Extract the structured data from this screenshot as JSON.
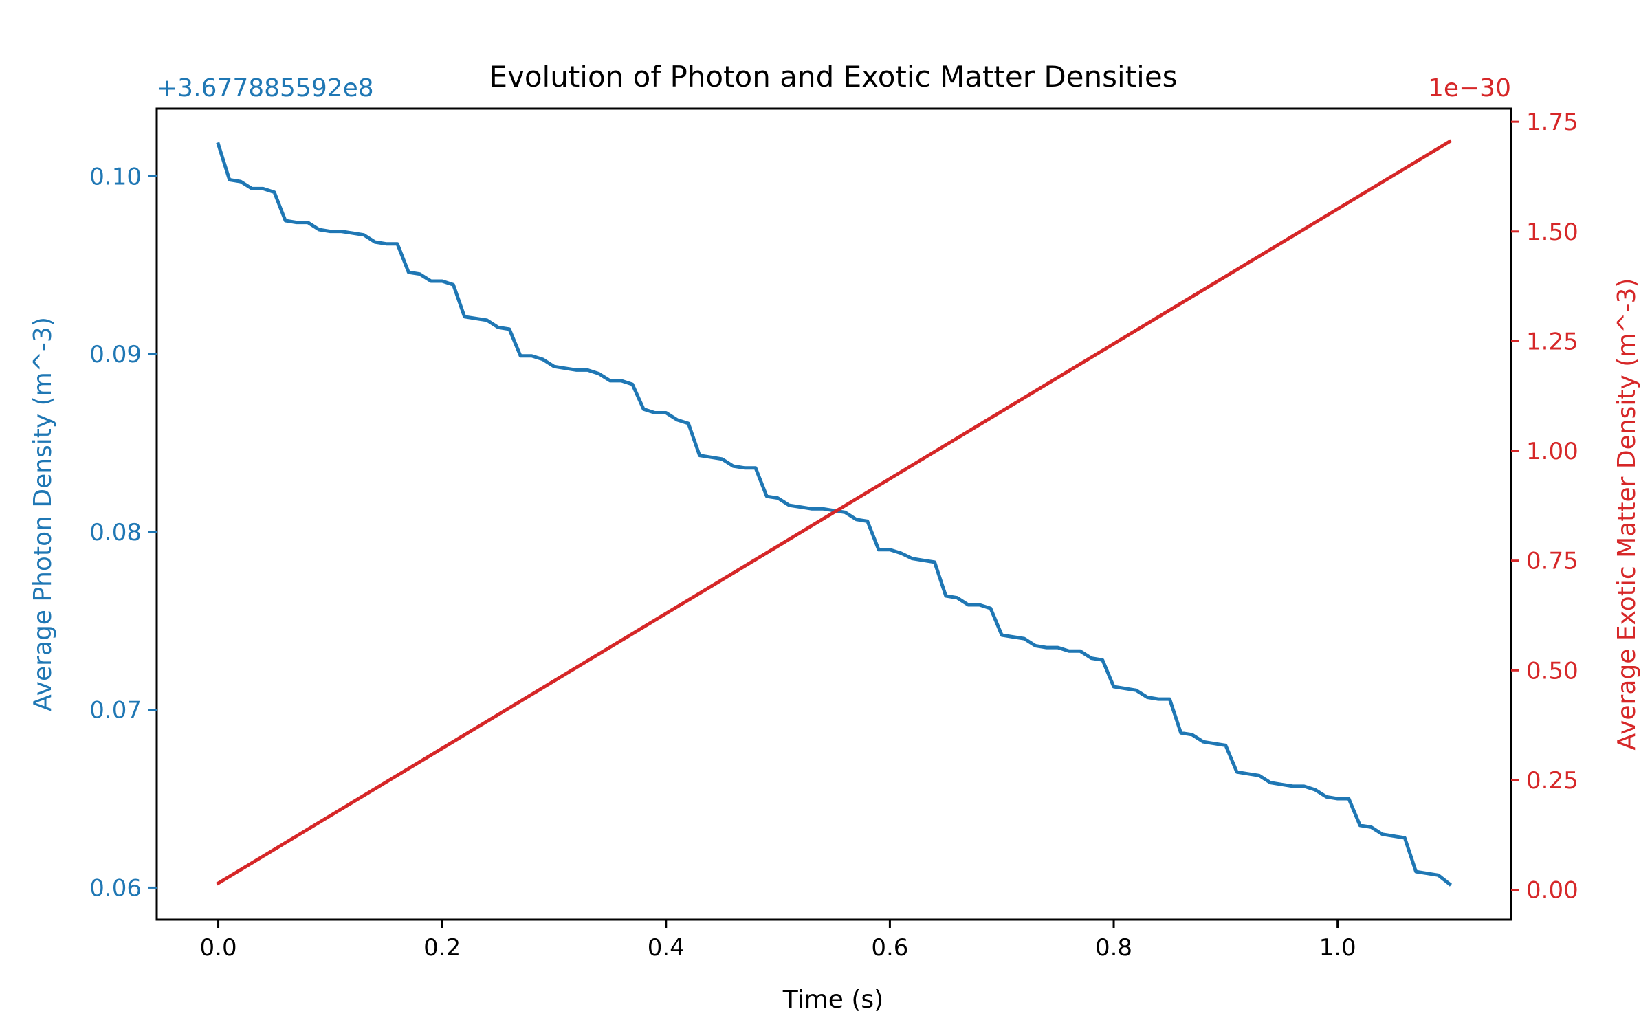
{
  "chart_data": {
    "type": "line",
    "title": "Evolution of Photon and Exotic Matter Densities",
    "xlabel": "Time (s)",
    "ylabel_left": "Average Photon Density (m^-3)",
    "ylabel_right": "Average Exotic Matter Density (m^-3)",
    "left_axis_offset_label": "+3.677885592e8",
    "right_axis_scale_label": "1e−30",
    "xlim": [
      -0.055,
      1.155
    ],
    "ylim_left": [
      0.0582,
      0.1038
    ],
    "ylim_right": [
      -0.068,
      1.78
    ],
    "x_ticks": [
      0.0,
      0.2,
      0.4,
      0.6,
      0.8,
      1.0
    ],
    "x_tick_labels": [
      "0.0",
      "0.2",
      "0.4",
      "0.6",
      "0.8",
      "1.0"
    ],
    "y_left_ticks": [
      0.06,
      0.07,
      0.08,
      0.09,
      0.1
    ],
    "y_left_tick_labels": [
      "0.06",
      "0.07",
      "0.08",
      "0.09",
      "0.10"
    ],
    "y_right_ticks": [
      0.0,
      0.25,
      0.5,
      0.75,
      1.0,
      1.25,
      1.5,
      1.75
    ],
    "y_right_tick_labels": [
      "0.00",
      "0.25",
      "0.50",
      "0.75",
      "1.00",
      "1.25",
      "1.50",
      "1.75"
    ],
    "grid": false,
    "colors": {
      "photon": "#1f77b4",
      "exotic": "#d62728",
      "axis": "#000000"
    },
    "series": [
      {
        "axis": "left",
        "x": [
          0.0,
          0.01,
          0.02,
          0.03,
          0.04,
          0.05,
          0.06,
          0.07,
          0.08,
          0.09,
          0.1,
          0.11,
          0.12,
          0.13,
          0.14,
          0.15,
          0.16,
          0.17,
          0.18,
          0.19,
          0.2,
          0.21,
          0.22,
          0.23,
          0.24,
          0.25,
          0.26,
          0.27,
          0.28,
          0.29,
          0.3,
          0.31,
          0.32,
          0.33,
          0.34,
          0.35,
          0.36,
          0.37,
          0.38,
          0.39,
          0.4,
          0.41,
          0.42,
          0.43,
          0.44,
          0.45,
          0.46,
          0.47,
          0.48,
          0.49,
          0.5,
          0.51,
          0.52,
          0.53,
          0.54,
          0.55,
          0.56,
          0.57,
          0.58,
          0.59,
          0.6,
          0.61,
          0.62,
          0.63,
          0.64,
          0.65,
          0.66,
          0.67,
          0.68,
          0.69,
          0.7,
          0.71,
          0.72,
          0.73,
          0.74,
          0.75,
          0.76,
          0.77,
          0.78,
          0.79,
          0.8,
          0.81,
          0.82,
          0.83,
          0.84,
          0.85,
          0.86,
          0.87,
          0.88,
          0.89,
          0.9,
          0.91,
          0.92,
          0.93,
          0.94,
          0.95,
          0.96,
          0.97,
          0.98,
          0.99,
          1.0,
          1.01,
          1.02,
          1.03,
          1.04,
          1.05,
          1.06,
          1.07,
          1.08,
          1.09,
          1.1
        ],
        "values": [
          0.1018,
          0.0998,
          0.0997,
          0.0993,
          0.0993,
          0.0991,
          0.0975,
          0.0974,
          0.0974,
          0.097,
          0.0969,
          0.0969,
          0.0968,
          0.0967,
          0.0963,
          0.0962,
          0.0962,
          0.0946,
          0.0945,
          0.0941,
          0.0941,
          0.0939,
          0.0921,
          0.092,
          0.0919,
          0.0915,
          0.0914,
          0.0899,
          0.0899,
          0.0897,
          0.0893,
          0.0892,
          0.0891,
          0.0891,
          0.0889,
          0.0885,
          0.0885,
          0.0883,
          0.0869,
          0.0867,
          0.0867,
          0.0863,
          0.0861,
          0.0843,
          0.0842,
          0.0841,
          0.0837,
          0.0836,
          0.0836,
          0.082,
          0.0819,
          0.0815,
          0.0814,
          0.0813,
          0.0813,
          0.0812,
          0.0811,
          0.0807,
          0.0806,
          0.079,
          0.079,
          0.0788,
          0.0785,
          0.0784,
          0.0783,
          0.0764,
          0.0763,
          0.0759,
          0.0759,
          0.0757,
          0.0742,
          0.0741,
          0.074,
          0.0736,
          0.0735,
          0.0735,
          0.0733,
          0.0733,
          0.0729,
          0.0728,
          0.0713,
          0.0712,
          0.0711,
          0.0707,
          0.0706,
          0.0706,
          0.0687,
          0.0686,
          0.0682,
          0.0681,
          0.068,
          0.0665,
          0.0664,
          0.0663,
          0.0659,
          0.0658,
          0.0657,
          0.0657,
          0.0655,
          0.0651,
          0.065,
          0.065,
          0.0635,
          0.0634,
          0.063,
          0.0629,
          0.0628,
          0.0609,
          0.0608,
          0.0607,
          0.0602
        ]
      },
      {
        "axis": "right",
        "x": [
          0.0,
          1.1
        ],
        "values": [
          0.015,
          1.705
        ]
      }
    ]
  }
}
